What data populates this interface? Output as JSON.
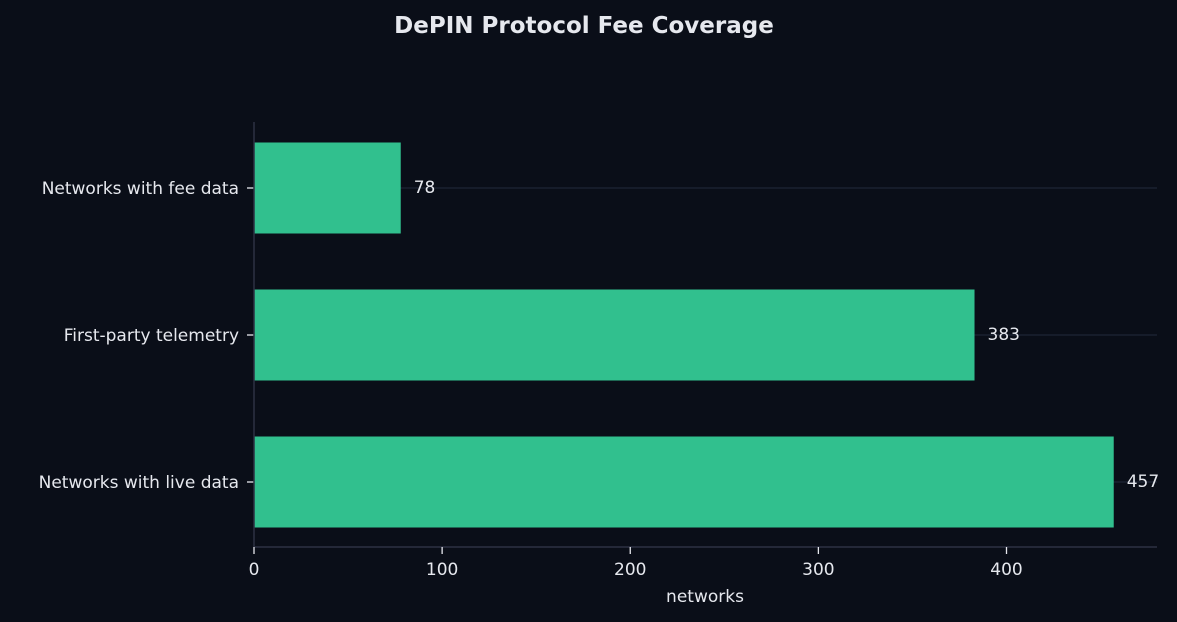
{
  "chart_data": {
    "type": "bar",
    "orientation": "horizontal",
    "title": "DePIN Protocol Fee Coverage",
    "xlabel": "networks",
    "ylabel": "",
    "categories": [
      "Networks with fee data",
      "First-party telemetry",
      "Networks with live data"
    ],
    "values": [
      78,
      383,
      457
    ],
    "xlim": [
      0,
      480
    ],
    "xticks": [
      0,
      100,
      200,
      300,
      400
    ],
    "grid": "horizontal",
    "legend": "none",
    "colors": {
      "background": "#0a0e18",
      "bar": "#31c08e",
      "text": "#e6e8ee",
      "axis": "#2c3142",
      "grid": "#1b2030"
    }
  }
}
